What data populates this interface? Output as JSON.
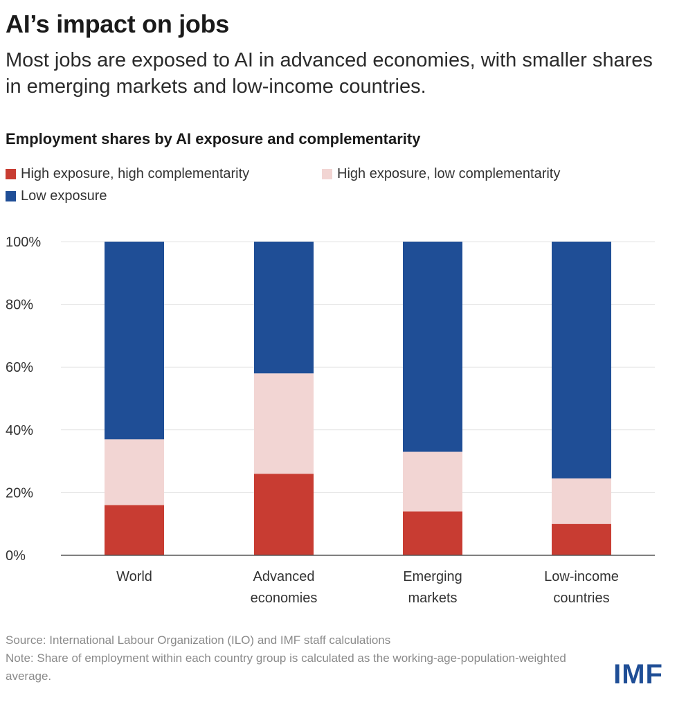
{
  "title": "AI’s impact on jobs",
  "subtitle": "Most jobs are exposed to AI in advanced economies, with smaller shares in emerging markets and low-income countries.",
  "chart_title": "Employment shares by AI exposure and complementarity",
  "legend": [
    {
      "label": "High exposure, high complementarity",
      "color": "#c83c32"
    },
    {
      "label": "High exposure, low complementarity",
      "color": "#f2d5d3"
    },
    {
      "label": "Low exposure",
      "color": "#1f4e96"
    }
  ],
  "chart_data": {
    "type": "bar",
    "stacked": true,
    "categories": [
      [
        "World"
      ],
      [
        "Advanced",
        "economies"
      ],
      [
        "Emerging",
        "markets"
      ],
      [
        "Low-income",
        "countries"
      ]
    ],
    "series": [
      {
        "name": "High exposure, high complementarity",
        "color": "#c83c32",
        "values": [
          16,
          26,
          14,
          10
        ]
      },
      {
        "name": "High exposure, low complementarity",
        "color": "#f2d5d3",
        "values": [
          21,
          32,
          19,
          14.5
        ]
      },
      {
        "name": "Low exposure",
        "color": "#1f4e96",
        "values": [
          63,
          42,
          67,
          75.5
        ]
      }
    ],
    "ylim": [
      0,
      100
    ],
    "yticks": [
      0,
      20,
      40,
      60,
      80,
      100
    ],
    "ytick_labels": [
      "0%",
      "20%",
      "40%",
      "60%",
      "80%",
      "100%"
    ],
    "grid": true
  },
  "source": "Source: International Labour Organization (ILO) and IMF staff calculations",
  "note": "Note: Share of employment within each country group is calculated as the working-age-population-weighted average.",
  "logo": "IMF"
}
